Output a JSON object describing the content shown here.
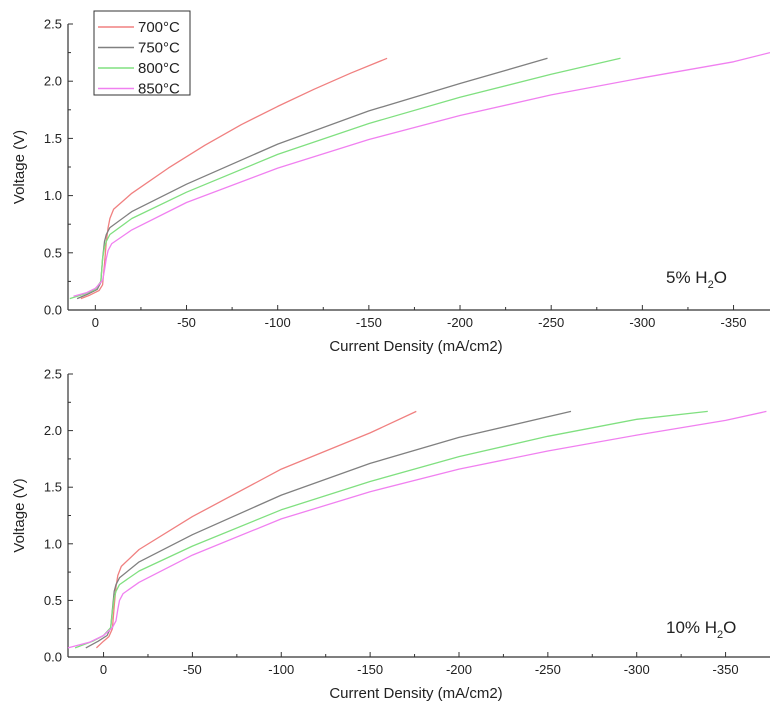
{
  "chart_data": [
    {
      "type": "line",
      "title": "",
      "xlabel": "Current Density (mA/cm2)",
      "ylabel": "Voltage (V)",
      "xlim": [
        15,
        -370
      ],
      "ylim": [
        0,
        2.5
      ],
      "x_ticks": [
        0,
        -50,
        -100,
        -150,
        -200,
        -250,
        -300,
        -350
      ],
      "x_tick_labels": [
        "0",
        "-50",
        "-100",
        "-150",
        "-200",
        "-250",
        "-300",
        "-350"
      ],
      "y_ticks": [
        0,
        0.5,
        1.0,
        1.5,
        2.0,
        2.5
      ],
      "y_tick_labels": [
        "0.0",
        "0.5",
        "1.0",
        "1.5",
        "2.0",
        "2.5"
      ],
      "annotation": {
        "prefix": "5% H",
        "sub": "2",
        "suffix": "O"
      },
      "legend": {
        "placement": "top-left"
      },
      "grid": false,
      "series": [
        {
          "name": "700°C",
          "color": "#f08080",
          "x": [
            8,
            3,
            -2,
            -4,
            -5,
            -6,
            -7,
            -8,
            -10,
            -20,
            -40,
            -60,
            -80,
            -100,
            -120,
            -140,
            -160
          ],
          "y": [
            0.1,
            0.13,
            0.17,
            0.22,
            0.4,
            0.6,
            0.72,
            0.8,
            0.88,
            1.02,
            1.24,
            1.44,
            1.62,
            1.78,
            1.93,
            2.07,
            2.2
          ]
        },
        {
          "name": "750°C",
          "color": "#808080",
          "x": [
            10,
            4,
            -1,
            -3,
            -4,
            -5,
            -6,
            -8,
            -20,
            -50,
            -100,
            -150,
            -200,
            -248
          ],
          "y": [
            0.1,
            0.14,
            0.18,
            0.24,
            0.45,
            0.6,
            0.66,
            0.72,
            0.86,
            1.1,
            1.45,
            1.74,
            1.98,
            2.2
          ]
        },
        {
          "name": "800°C",
          "color": "#80e080",
          "x": [
            14,
            6,
            0,
            -3,
            -4,
            -5,
            -6,
            -8,
            -20,
            -50,
            -100,
            -150,
            -200,
            -250,
            -288
          ],
          "y": [
            0.1,
            0.14,
            0.18,
            0.25,
            0.45,
            0.55,
            0.6,
            0.66,
            0.8,
            1.03,
            1.36,
            1.63,
            1.86,
            2.06,
            2.2
          ]
        },
        {
          "name": "850°C",
          "color": "#f080f0",
          "x": [
            12,
            5,
            0,
            -4,
            -5,
            -6,
            -7,
            -9,
            -20,
            -50,
            -100,
            -150,
            -200,
            -250,
            -300,
            -350,
            -370
          ],
          "y": [
            0.12,
            0.15,
            0.19,
            0.26,
            0.35,
            0.45,
            0.52,
            0.58,
            0.7,
            0.94,
            1.24,
            1.49,
            1.7,
            1.88,
            2.03,
            2.17,
            2.25
          ]
        }
      ]
    },
    {
      "type": "line",
      "title": "",
      "xlabel": "Current Density (mA/cm2)",
      "ylabel": "Voltage (V)",
      "xlim": [
        20,
        -375
      ],
      "ylim": [
        0,
        2.5
      ],
      "x_ticks": [
        0,
        -50,
        -100,
        -150,
        -200,
        -250,
        -300,
        -350
      ],
      "x_tick_labels": [
        "0",
        "-50",
        "-100",
        "-150",
        "-200",
        "-250",
        "-300",
        "-350"
      ],
      "y_ticks": [
        0,
        0.5,
        1.0,
        1.5,
        2.0,
        2.5
      ],
      "y_tick_labels": [
        "0.0",
        "0.5",
        "1.0",
        "1.5",
        "2.0",
        "2.5"
      ],
      "annotation": {
        "prefix": "10% H",
        "sub": "2",
        "suffix": "O"
      },
      "grid": false,
      "series": [
        {
          "name": "700°C",
          "color": "#f08080",
          "x": [
            4,
            0,
            -3,
            -5,
            -6,
            -7,
            -8,
            -10,
            -20,
            -50,
            -100,
            -150,
            -176
          ],
          "y": [
            0.08,
            0.14,
            0.18,
            0.25,
            0.45,
            0.62,
            0.72,
            0.8,
            0.95,
            1.24,
            1.66,
            1.98,
            2.17
          ]
        },
        {
          "name": "750°C",
          "color": "#808080",
          "x": [
            10,
            3,
            -2,
            -4,
            -5,
            -6,
            -7,
            -9,
            -20,
            -50,
            -100,
            -150,
            -200,
            -263
          ],
          "y": [
            0.08,
            0.14,
            0.19,
            0.26,
            0.42,
            0.58,
            0.64,
            0.7,
            0.84,
            1.08,
            1.43,
            1.71,
            1.94,
            2.17
          ]
        },
        {
          "name": "800°C",
          "color": "#80e080",
          "x": [
            16,
            6,
            0,
            -4,
            -5,
            -6,
            -7,
            -9,
            -20,
            -50,
            -100,
            -150,
            -200,
            -250,
            -300,
            -340
          ],
          "y": [
            0.08,
            0.14,
            0.19,
            0.26,
            0.4,
            0.52,
            0.58,
            0.64,
            0.76,
            0.98,
            1.3,
            1.55,
            1.77,
            1.95,
            2.1,
            2.17
          ]
        },
        {
          "name": "850°C",
          "color": "#f080f0",
          "x": [
            20,
            8,
            0,
            -5,
            -7,
            -8,
            -9,
            -11,
            -20,
            -50,
            -100,
            -150,
            -200,
            -250,
            -300,
            -350,
            -373
          ],
          "y": [
            0.08,
            0.13,
            0.19,
            0.26,
            0.32,
            0.42,
            0.5,
            0.56,
            0.66,
            0.9,
            1.22,
            1.46,
            1.66,
            1.82,
            1.96,
            2.09,
            2.17
          ]
        }
      ]
    }
  ]
}
